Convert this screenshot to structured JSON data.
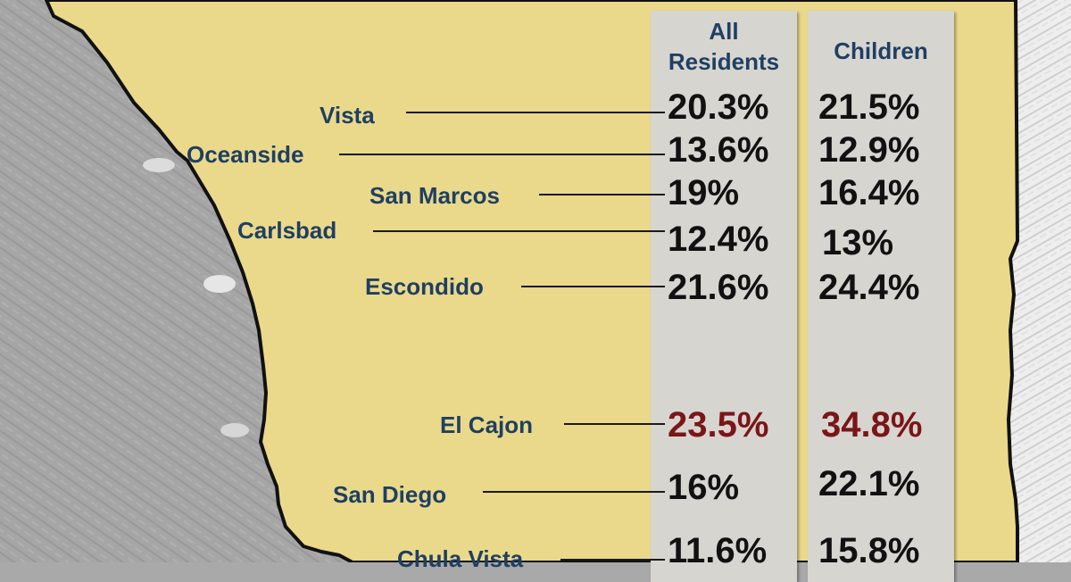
{
  "map": {
    "region": "San Diego County",
    "colors": {
      "ocean": "#a9a9a9",
      "land": "#ead98a",
      "highlight": "#7a1518",
      "label": "#1f3f63"
    }
  },
  "table": {
    "headers": {
      "all_residents": "All Residents",
      "children": "Children"
    },
    "rows": [
      {
        "city": "Vista",
        "all": "20.3%",
        "children": "21.5%"
      },
      {
        "city": "Oceanside",
        "all": "13.6%",
        "children": "12.9%"
      },
      {
        "city": "San Marcos",
        "all": "19%",
        "children": "16.4%"
      },
      {
        "city": "Carlsbad",
        "all": "12.4%",
        "children": "13%"
      },
      {
        "city": "Escondido",
        "all": "21.6%",
        "children": "24.4%"
      },
      {
        "city": "El Cajon",
        "all": "23.5%",
        "children": "34.8%",
        "highlight": true
      },
      {
        "city": "San Diego",
        "all": "16%",
        "children": "22.1%"
      },
      {
        "city": "Chula Vista",
        "all": "11.6%",
        "children": "15.8%"
      }
    ]
  }
}
